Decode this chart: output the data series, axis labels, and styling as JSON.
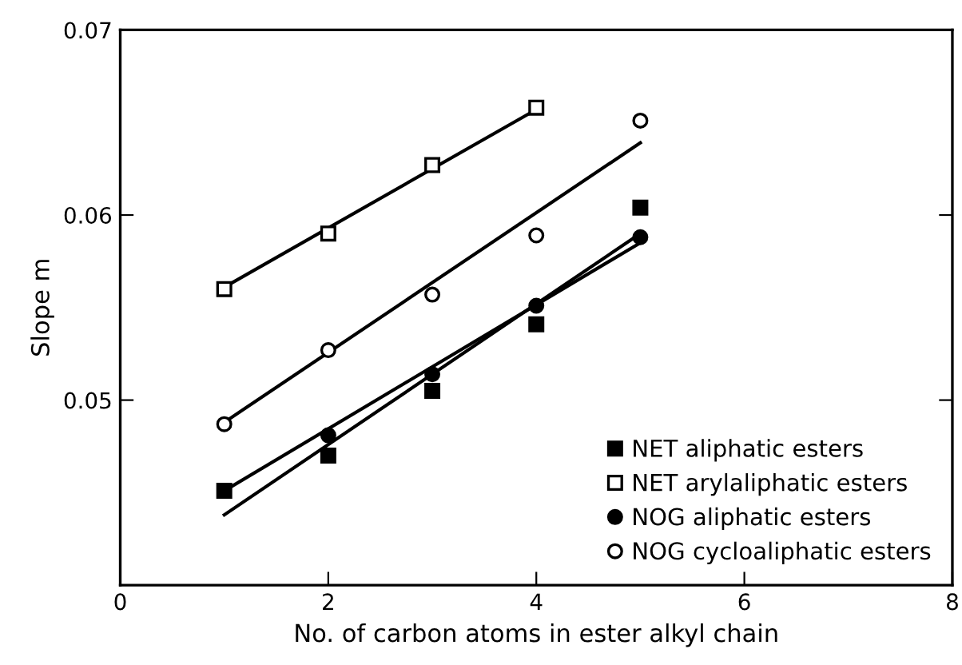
{
  "chart_data": {
    "type": "scatter",
    "xlabel": "No. of carbon atoms in ester alkyl chain",
    "ylabel": "Slope m",
    "xlim": [
      0,
      8
    ],
    "ylim": [
      0.04,
      0.07
    ],
    "xticks": [
      0,
      2,
      4,
      6,
      8
    ],
    "yticks": [
      0.05,
      0.06,
      0.07
    ],
    "grid": false,
    "legend": "bottom right",
    "series": [
      {
        "name": "NET aliphatic esters",
        "marker": "square",
        "color": "#000000",
        "x": [
          1,
          2,
          3,
          4,
          5
        ],
        "values": [
          0.0451,
          0.047,
          0.0505,
          0.0541,
          0.0604
        ]
      },
      {
        "name": "NET arylaliphatic esters",
        "marker": "square",
        "color": "#ffffff",
        "x": [
          1,
          2,
          3,
          4
        ],
        "values": [
          0.056,
          0.059,
          0.0627,
          0.0658
        ]
      },
      {
        "name": "NOG aliphatic esters",
        "marker": "circle",
        "color": "#000000",
        "x": [
          2,
          3,
          4,
          5
        ],
        "values": [
          0.0481,
          0.0514,
          0.0551,
          0.0588
        ]
      },
      {
        "name": "NOG cycloaliphatic esters",
        "marker": "circle",
        "color": "#ffffff",
        "x": [
          1,
          2,
          3,
          4,
          5
        ],
        "values": [
          0.0487,
          0.0527,
          0.0557,
          0.0589,
          0.0651
        ]
      },
      {
        "type": "line",
        "color": "#000000",
        "x": [
          1,
          5
        ],
        "values": [
          0.0438,
          0.059
        ]
      },
      {
        "type": "line",
        "color": "#000000",
        "x": [
          1,
          4
        ],
        "values": [
          0.0561,
          0.0657
        ]
      },
      {
        "type": "line",
        "color": "#000000",
        "x": [
          1,
          5
        ],
        "values": [
          0.0451,
          0.0585
        ]
      },
      {
        "type": "line",
        "color": "#000000",
        "x": [
          1,
          5
        ],
        "values": [
          0.0488,
          0.0639
        ]
      }
    ]
  }
}
